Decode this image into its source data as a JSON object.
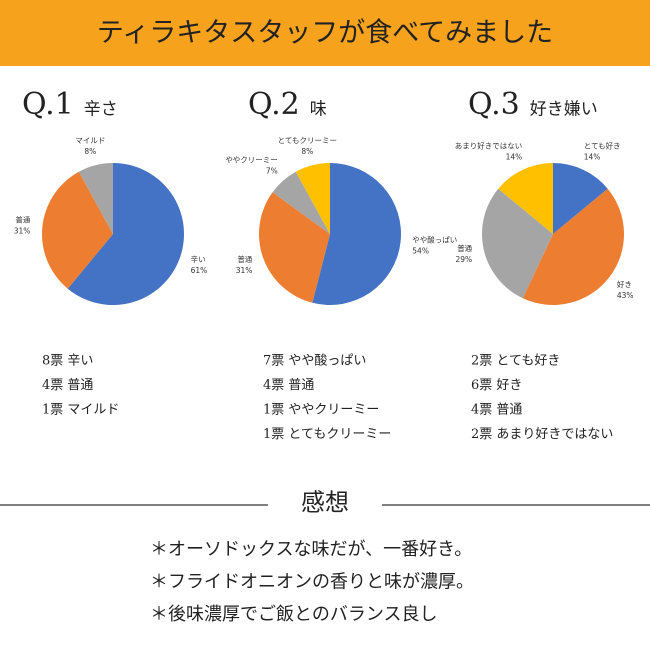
{
  "header": {
    "title": "ティラキタスタッフが食べてみました"
  },
  "chart_data": [
    {
      "type": "pie",
      "title": "Q.1",
      "subtitle": "辛さ",
      "categories": [
        "辛い",
        "普通",
        "マイルド"
      ],
      "values": [
        61,
        31,
        8
      ],
      "value_labels": [
        "61%",
        "31%",
        "8%"
      ],
      "colors": [
        "#4472c4",
        "#ed7d31",
        "#a5a5a5"
      ],
      "votes": [
        "8票 辛い",
        "4票 普通",
        "1票 マイルド"
      ]
    },
    {
      "type": "pie",
      "title": "Q.2",
      "subtitle": "味",
      "categories": [
        "やや酸っぱい",
        "普通",
        "ややクリーミー",
        "とてもクリーミー"
      ],
      "values": [
        54,
        31,
        7,
        8
      ],
      "value_labels": [
        "54%",
        "31%",
        "7%",
        "8%"
      ],
      "colors": [
        "#4472c4",
        "#ed7d31",
        "#a5a5a5",
        "#ffc000"
      ],
      "votes": [
        "7票 やや酸っぱい",
        "4票 普通",
        "1票 ややクリーミー",
        "1票 とてもクリーミー"
      ]
    },
    {
      "type": "pie",
      "title": "Q.3",
      "subtitle": "好き嫌い",
      "categories": [
        "とても好き",
        "好き",
        "普通",
        "あまり好きではない"
      ],
      "values": [
        14,
        43,
        29,
        14
      ],
      "value_labels": [
        "14%",
        "43%",
        "29%",
        "14%"
      ],
      "colors": [
        "#4472c4",
        "#ed7d31",
        "#a5a5a5",
        "#ffc000"
      ],
      "votes": [
        "2票 とても好き",
        "6票 好き",
        "4票 普通",
        "2票 あまり好きではない"
      ]
    }
  ],
  "impressions": {
    "title": "感想",
    "items": [
      "＊オーソドックスな味だが、一番好き。",
      "＊フライドオニオンの香りと味が濃厚。",
      "＊後味濃厚でご飯とのバランス良し"
    ]
  }
}
